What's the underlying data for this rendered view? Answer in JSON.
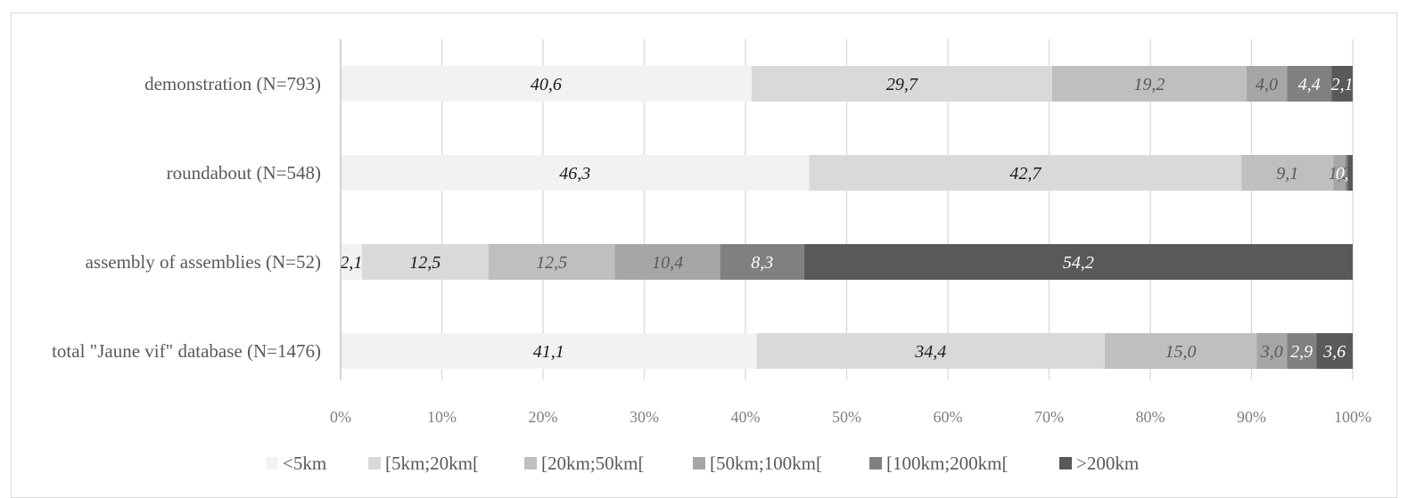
{
  "chart_data": {
    "type": "bar",
    "orientation": "horizontal",
    "stacked": "100%",
    "categories": [
      "demonstration (N=793)",
      "roundabout (N=548)",
      "assembly of assemblies (N=52)",
      "total \"Jaune vif\" database (N=1476)"
    ],
    "series": [
      {
        "name": "<5km",
        "color": "#f2f2f2",
        "label_color": "#1a1a1a",
        "values": [
          40.6,
          46.3,
          2.1,
          41.1
        ],
        "labels": [
          "40,6",
          "46,3",
          "2,1",
          "41,1"
        ]
      },
      {
        "name": "[5km;20km[",
        "color": "#d9d9d9",
        "label_color": "#1a1a1a",
        "values": [
          29.7,
          42.7,
          12.5,
          34.4
        ],
        "labels": [
          "29,7",
          "42,7",
          "12,5",
          "34,4"
        ]
      },
      {
        "name": "[20km;50km[",
        "color": "#bfbfbf",
        "label_color": "#595959",
        "values": [
          19.2,
          9.1,
          12.5,
          15.0
        ],
        "labels": [
          "19,2",
          "9,1",
          "12,5",
          "15,0"
        ]
      },
      {
        "name": "[50km;100km[",
        "color": "#a6a6a6",
        "label_color": "#595959",
        "values": [
          4.0,
          1.2,
          10.4,
          3.0
        ],
        "labels": [
          "4,0",
          "1,2",
          "10,4",
          "3,0"
        ]
      },
      {
        "name": "[100km;200km[",
        "color": "#808080",
        "label_color": "#ffffff",
        "values": [
          4.4,
          0.2,
          8.3,
          2.9
        ],
        "labels": [
          "4,4",
          "0,2",
          "8,3",
          "2,9"
        ]
      },
      {
        "name": ">200km",
        "color": "#595959",
        "label_color": "#ffffff",
        "values": [
          2.1,
          0.5,
          54.2,
          3.6
        ],
        "labels": [
          "2,1",
          "",
          "54,2",
          "3,6"
        ]
      }
    ],
    "x_ticks": [
      "0%",
      "10%",
      "20%",
      "30%",
      "40%",
      "50%",
      "60%",
      "70%",
      "80%",
      "90%",
      "100%"
    ],
    "xlim": [
      0,
      100
    ],
    "grid": true,
    "legend_position": "bottom"
  }
}
